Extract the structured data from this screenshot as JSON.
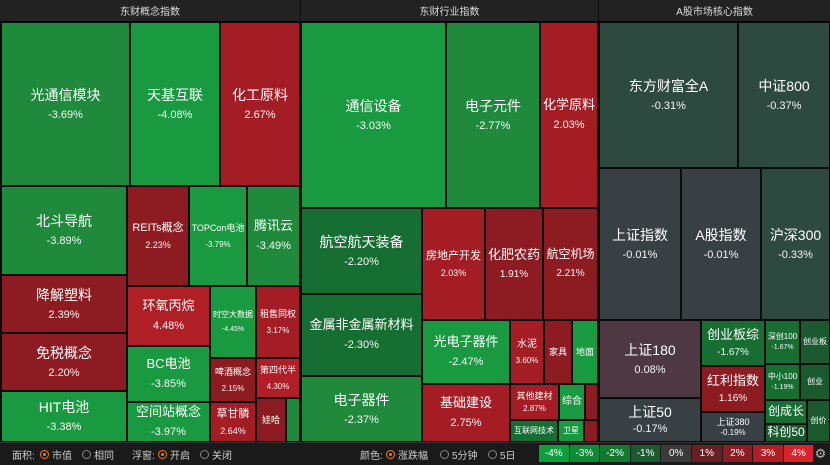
{
  "colors": {
    "g_strong": "#1a9a40",
    "g_mid": "#1f8a3c",
    "g_dark": "#166e32",
    "r_strong": "#a41d24",
    "r_mid": "#8d1c22",
    "r_light": "#7a1f24",
    "grey_green": "#2e4a40",
    "grey_red": "#4e3842",
    "grey": "#384044"
  },
  "panels": [
    {
      "title": "东财概念指数"
    },
    {
      "title": "东财行业指数"
    },
    {
      "title": "A股市场核心指数"
    }
  ],
  "tiles": [
    {
      "name": "光通信模块",
      "value": "-3.69%"
    },
    {
      "name": "天基互联",
      "value": "-4.08%"
    },
    {
      "name": "化工原料",
      "value": "2.67%"
    },
    {
      "name": "北斗导航",
      "value": "-3.89%"
    },
    {
      "name": "REITs概念",
      "value": "2.23%"
    },
    {
      "name": "TOPCon电池",
      "value": "-3.79%"
    },
    {
      "name": "腾讯云",
      "value": "-3.49%"
    },
    {
      "name": "降解塑料",
      "value": "2.39%"
    },
    {
      "name": "环氧丙烷",
      "value": "4.48%"
    },
    {
      "name": "时空大数据",
      "value": "-4.45%"
    },
    {
      "name": "租售同权",
      "value": "3.17%"
    },
    {
      "name": "免税概念",
      "value": "2.20%"
    },
    {
      "name": "BC电池",
      "value": "-3.85%"
    },
    {
      "name": "啤酒概念",
      "value": "2.15%"
    },
    {
      "name": "第四代半",
      "value": "4.30%"
    },
    {
      "name": "HIT电池",
      "value": "-3.38%"
    },
    {
      "name": "空间站概念",
      "value": "-3.97%"
    },
    {
      "name": "草甘膦",
      "value": "2.64%"
    },
    {
      "name": "娃哈",
      "value": ""
    },
    {
      "name": "通信设备",
      "value": "-3.03%"
    },
    {
      "name": "电子元件",
      "value": "-2.77%"
    },
    {
      "name": "化学原料",
      "value": "2.03%"
    },
    {
      "name": "航空航天装备",
      "value": "-2.20%"
    },
    {
      "name": "房地产开发",
      "value": "2.03%"
    },
    {
      "name": "化肥农药",
      "value": "1.91%"
    },
    {
      "name": "航空机场",
      "value": "2.21%"
    },
    {
      "name": "金属非金属新材料",
      "value": "-2.30%"
    },
    {
      "name": "光电子器件",
      "value": "-2.47%"
    },
    {
      "name": "水泥",
      "value": "3.60%"
    },
    {
      "name": "家具",
      "value": ""
    },
    {
      "name": "地面",
      "value": ""
    },
    {
      "name": "电子器件",
      "value": "-2.37%"
    },
    {
      "name": "基础建设",
      "value": "2.75%"
    },
    {
      "name": "其他建材",
      "value": "2.87%"
    },
    {
      "name": "综合",
      "value": ""
    },
    {
      "name": "互联网技术",
      "value": ""
    },
    {
      "name": "卫星",
      "value": ""
    },
    {
      "name": "东方财富全A",
      "value": "-0.31%"
    },
    {
      "name": "中证800",
      "value": "-0.37%"
    },
    {
      "name": "上证指数",
      "value": "-0.01%"
    },
    {
      "name": "A股指数",
      "value": "-0.01%"
    },
    {
      "name": "沪深300",
      "value": "-0.33%"
    },
    {
      "name": "上证180",
      "value": "0.08%"
    },
    {
      "name": "创业板综",
      "value": "-1.67%"
    },
    {
      "name": "深创100",
      "value": "-1.67%"
    },
    {
      "name": "创业板",
      "value": ""
    },
    {
      "name": "红利指数",
      "value": "1.16%"
    },
    {
      "name": "中小100",
      "value": "-1.19%"
    },
    {
      "name": "创业",
      "value": ""
    },
    {
      "name": "上证50",
      "value": "-0.17%"
    },
    {
      "name": "上证380",
      "value": "-0.19%"
    },
    {
      "name": "创成长",
      "value": ""
    },
    {
      "name": "科创50",
      "value": ""
    },
    {
      "name": "创价",
      "value": ""
    }
  ],
  "bottom": {
    "area_label": "面积:",
    "area_opt1": "市值",
    "area_opt2": "相同",
    "float_label": "浮窗:",
    "float_opt1": "开启",
    "float_opt2": "关闭",
    "color_label": "颜色:",
    "color_opt1": "涨跌幅",
    "color_opt2": "5分钟",
    "color_opt3": "5日",
    "legend": [
      "-4%",
      "-3%",
      "-2%",
      "-1%",
      "0%",
      "1%",
      "2%",
      "3%",
      "4%"
    ],
    "legend_colors": [
      "#0d9f3b",
      "#0f8a35",
      "#127a30",
      "#1a5a2e",
      "#3a3a3a",
      "#6a1f24",
      "#8a1e24",
      "#b01f26",
      "#d8232a"
    ]
  }
}
